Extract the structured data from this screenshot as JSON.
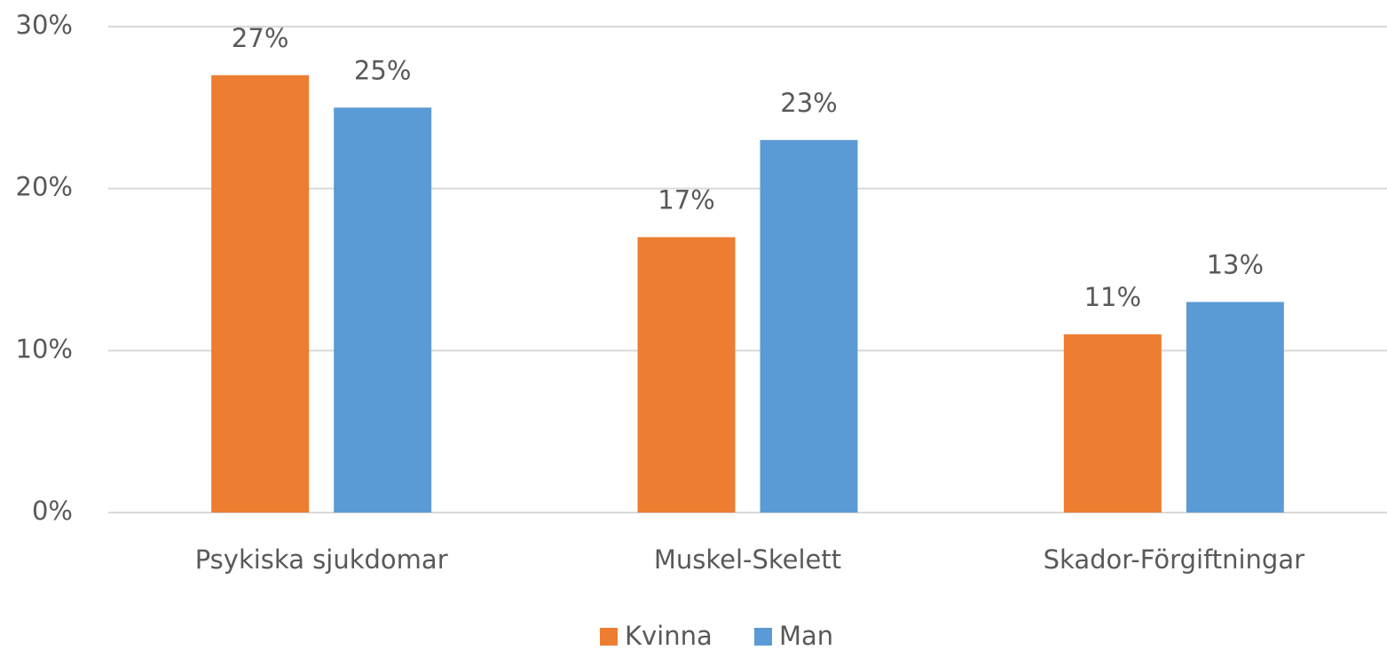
{
  "chart_data": {
    "type": "bar",
    "categories": [
      "Psykiska sjukdomar",
      "Muskel-Skelett",
      "Skador-Förgiftningar"
    ],
    "series": [
      {
        "name": "Kvinna",
        "color": "#ed7d31",
        "values": [
          27,
          17,
          11
        ],
        "value_labels": [
          "27%",
          "17%",
          "11%"
        ]
      },
      {
        "name": "Man",
        "color": "#5b9bd5",
        "values": [
          25,
          23,
          13
        ],
        "value_labels": [
          "25%",
          "23%",
          "13%"
        ]
      }
    ],
    "ylim": [
      0,
      30
    ],
    "yticks": [
      {
        "value": 0,
        "label": "0%"
      },
      {
        "value": 10,
        "label": "10%"
      },
      {
        "value": 20,
        "label": "20%"
      },
      {
        "value": 30,
        "label": "30%"
      }
    ],
    "grid": true,
    "legend": "bottom"
  }
}
